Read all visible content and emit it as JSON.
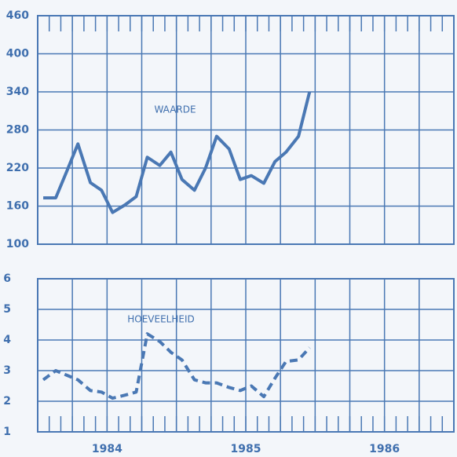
{
  "chart_data": [
    {
      "type": "line",
      "annotation": "WAARDE",
      "x": [
        1984.04,
        1984.13,
        1984.21,
        1984.29,
        1984.38,
        1984.46,
        1984.54,
        1984.63,
        1984.71,
        1984.79,
        1984.88,
        1984.96,
        1985.04,
        1985.13,
        1985.21,
        1985.29,
        1985.38,
        1985.46,
        1985.54,
        1985.63,
        1985.71,
        1985.79,
        1985.88,
        1985.96
      ],
      "series": [
        {
          "color": "#4a78b4",
          "dash": false,
          "values": [
            173,
            173,
            215,
            258,
            197,
            185,
            150,
            162,
            175,
            237,
            224,
            245,
            202,
            185,
            220,
            270,
            250,
            202,
            208,
            196,
            230,
            245,
            270,
            340
          ]
        }
      ],
      "xlim": [
        1984,
        1987
      ],
      "xticks": [
        1984,
        1984.25,
        1984.5,
        1984.75,
        1985,
        1985.25,
        1985.5,
        1985.75,
        1986,
        1986.25,
        1986.5,
        1986.75,
        1987
      ],
      "ylim": [
        100,
        460
      ],
      "yticks": [
        100,
        160,
        220,
        280,
        340,
        400,
        460
      ],
      "grid": true
    },
    {
      "type": "line",
      "annotation": "HOEVEELHEID",
      "x": [
        1984.04,
        1984.13,
        1984.21,
        1984.29,
        1984.38,
        1984.46,
        1984.54,
        1984.63,
        1984.71,
        1984.79,
        1984.88,
        1984.96,
        1985.04,
        1985.13,
        1985.21,
        1985.29,
        1985.38,
        1985.46,
        1985.54,
        1985.63,
        1985.71,
        1985.79,
        1985.88,
        1985.96
      ],
      "series": [
        {
          "color": "#4a78b4",
          "dash": true,
          "values": [
            2.7,
            3.0,
            2.85,
            2.7,
            2.35,
            2.3,
            2.1,
            2.2,
            2.3,
            4.2,
            3.95,
            3.6,
            3.35,
            2.7,
            2.6,
            2.6,
            2.45,
            2.35,
            2.5,
            2.15,
            2.75,
            3.3,
            3.35,
            3.75
          ]
        }
      ],
      "xlim": [
        1984,
        1987
      ],
      "xticks": [
        1984,
        1984.25,
        {
          "value": 1984.5,
          "label": "1984"
        },
        1984.75,
        1985,
        1985.25,
        {
          "value": 1985.5,
          "label": "1985"
        },
        1985.75,
        1986,
        1986.25,
        {
          "value": 1986.5,
          "label": "1986"
        },
        1986.75,
        1987
      ],
      "ylim": [
        1,
        6
      ],
      "yticks": [
        1,
        2,
        3,
        4,
        5,
        6
      ],
      "grid": true
    }
  ]
}
